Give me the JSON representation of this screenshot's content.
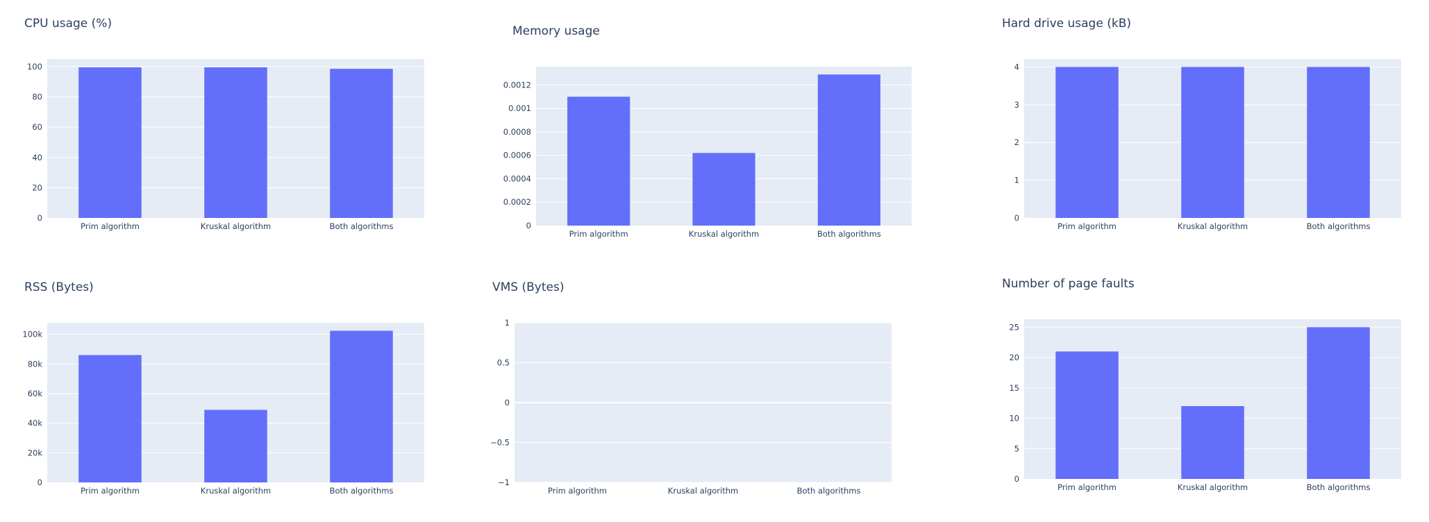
{
  "page": {
    "background": "#ffffff",
    "plot_background": "#e5ecf6",
    "bar_color": "#636efa",
    "grid_color": "#ffffff",
    "text_color": "#2a3f5f"
  },
  "chart_data": [
    {
      "type": "bar",
      "title": "CPU usage (%)",
      "categories": [
        "Prim algorithm",
        "Kruskal algorithm",
        "Both algorithms"
      ],
      "values": [
        99.5,
        99.5,
        98.5
      ],
      "ylim": [
        0,
        105
      ],
      "yticks": [
        0,
        20,
        40,
        60,
        80,
        100
      ],
      "ytick_labels": [
        "0",
        "20",
        "40",
        "60",
        "80",
        "100"
      ],
      "grid": true
    },
    {
      "type": "bar",
      "title": "Memory usage",
      "categories": [
        "Prim algorithm",
        "Kruskal algorithm",
        "Both algorithms"
      ],
      "values": [
        0.0011,
        0.00062,
        0.00129
      ],
      "ylim": [
        0,
        0.001357
      ],
      "yticks": [
        0,
        0.0002,
        0.0004,
        0.0006,
        0.0008,
        0.001,
        0.0012
      ],
      "ytick_labels": [
        "0",
        "0.0002",
        "0.0004",
        "0.0006",
        "0.0008",
        "0.001",
        "0.0012"
      ],
      "grid": true
    },
    {
      "type": "bar",
      "title": "Hard drive usage (kB)",
      "categories": [
        "Prim algorithm",
        "Kruskal algorithm",
        "Both algorithms"
      ],
      "values": [
        4,
        4,
        4
      ],
      "ylim": [
        0,
        4.21
      ],
      "yticks": [
        0,
        1,
        2,
        3,
        4
      ],
      "ytick_labels": [
        "0",
        "1",
        "2",
        "3",
        "4"
      ],
      "grid": true
    },
    {
      "type": "bar",
      "title": "RSS (Bytes)",
      "categories": [
        "Prim algorithm",
        "Kruskal algorithm",
        "Both algorithms"
      ],
      "values": [
        86000,
        49000,
        102400
      ],
      "ylim": [
        0,
        107800
      ],
      "yticks": [
        0,
        20000,
        40000,
        60000,
        80000,
        100000
      ],
      "ytick_labels": [
        "0",
        "20k",
        "40k",
        "60k",
        "80k",
        "100k"
      ],
      "grid": true
    },
    {
      "type": "bar",
      "title": "VMS (Bytes)",
      "categories": [
        "Prim algorithm",
        "Kruskal algorithm",
        "Both algorithms"
      ],
      "values": [
        0,
        0,
        0
      ],
      "ylim": [
        -1,
        1
      ],
      "yticks": [
        -1,
        -0.5,
        0,
        0.5,
        1
      ],
      "ytick_labels": [
        "−1",
        "−0.5",
        "0",
        "0.5",
        "1"
      ],
      "grid": true
    },
    {
      "type": "bar",
      "title": "Number of page faults",
      "categories": [
        "Prim algorithm",
        "Kruskal algorithm",
        "Both algorithms"
      ],
      "values": [
        21,
        12,
        25
      ],
      "ylim": [
        0,
        26.3
      ],
      "yticks": [
        0,
        5,
        10,
        15,
        20,
        25
      ],
      "ytick_labels": [
        "0",
        "5",
        "10",
        "15",
        "20",
        "25"
      ],
      "grid": true
    }
  ]
}
